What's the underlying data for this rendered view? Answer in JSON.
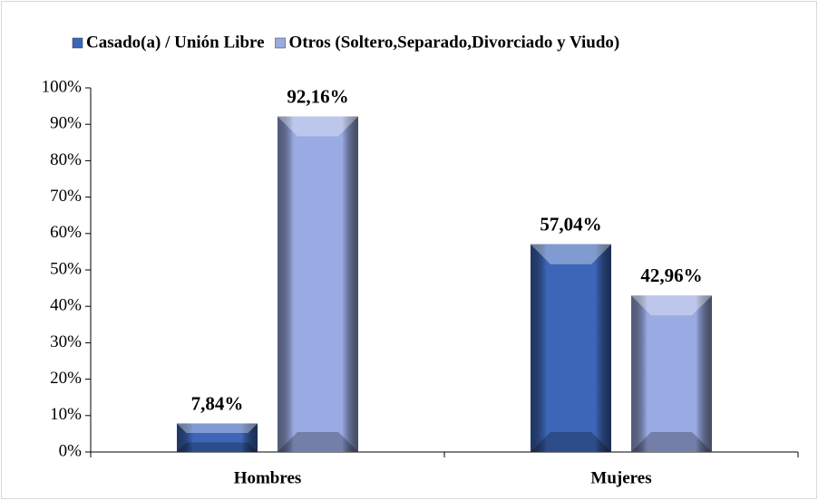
{
  "chart_data": {
    "type": "bar",
    "categories": [
      "Hombres",
      "Mujeres"
    ],
    "series": [
      {
        "name": "Casado(a) / Unión Libre",
        "color": "#3d66b8",
        "values": [
          7.84,
          57.04
        ],
        "value_labels": [
          "7,84%",
          "57,04%"
        ]
      },
      {
        "name": "Otros (Soltero,Separado,Divorciado y Viudo)",
        "color": "#9aaae2",
        "values": [
          92.16,
          42.96
        ],
        "value_labels": [
          "92,16%",
          "42,96%"
        ]
      }
    ],
    "ylim": [
      0,
      100
    ],
    "yticks": [
      {
        "value": 0,
        "label": "0%"
      },
      {
        "value": 10,
        "label": "10%"
      },
      {
        "value": 20,
        "label": "20%"
      },
      {
        "value": 30,
        "label": "30%"
      },
      {
        "value": 40,
        "label": "40%"
      },
      {
        "value": 50,
        "label": "50%"
      },
      {
        "value": 60,
        "label": "60%"
      },
      {
        "value": 70,
        "label": "70%"
      },
      {
        "value": 80,
        "label": "80%"
      },
      {
        "value": 90,
        "label": "90%"
      },
      {
        "value": 100,
        "label": "100%"
      }
    ],
    "legend": "top",
    "grid": false
  }
}
